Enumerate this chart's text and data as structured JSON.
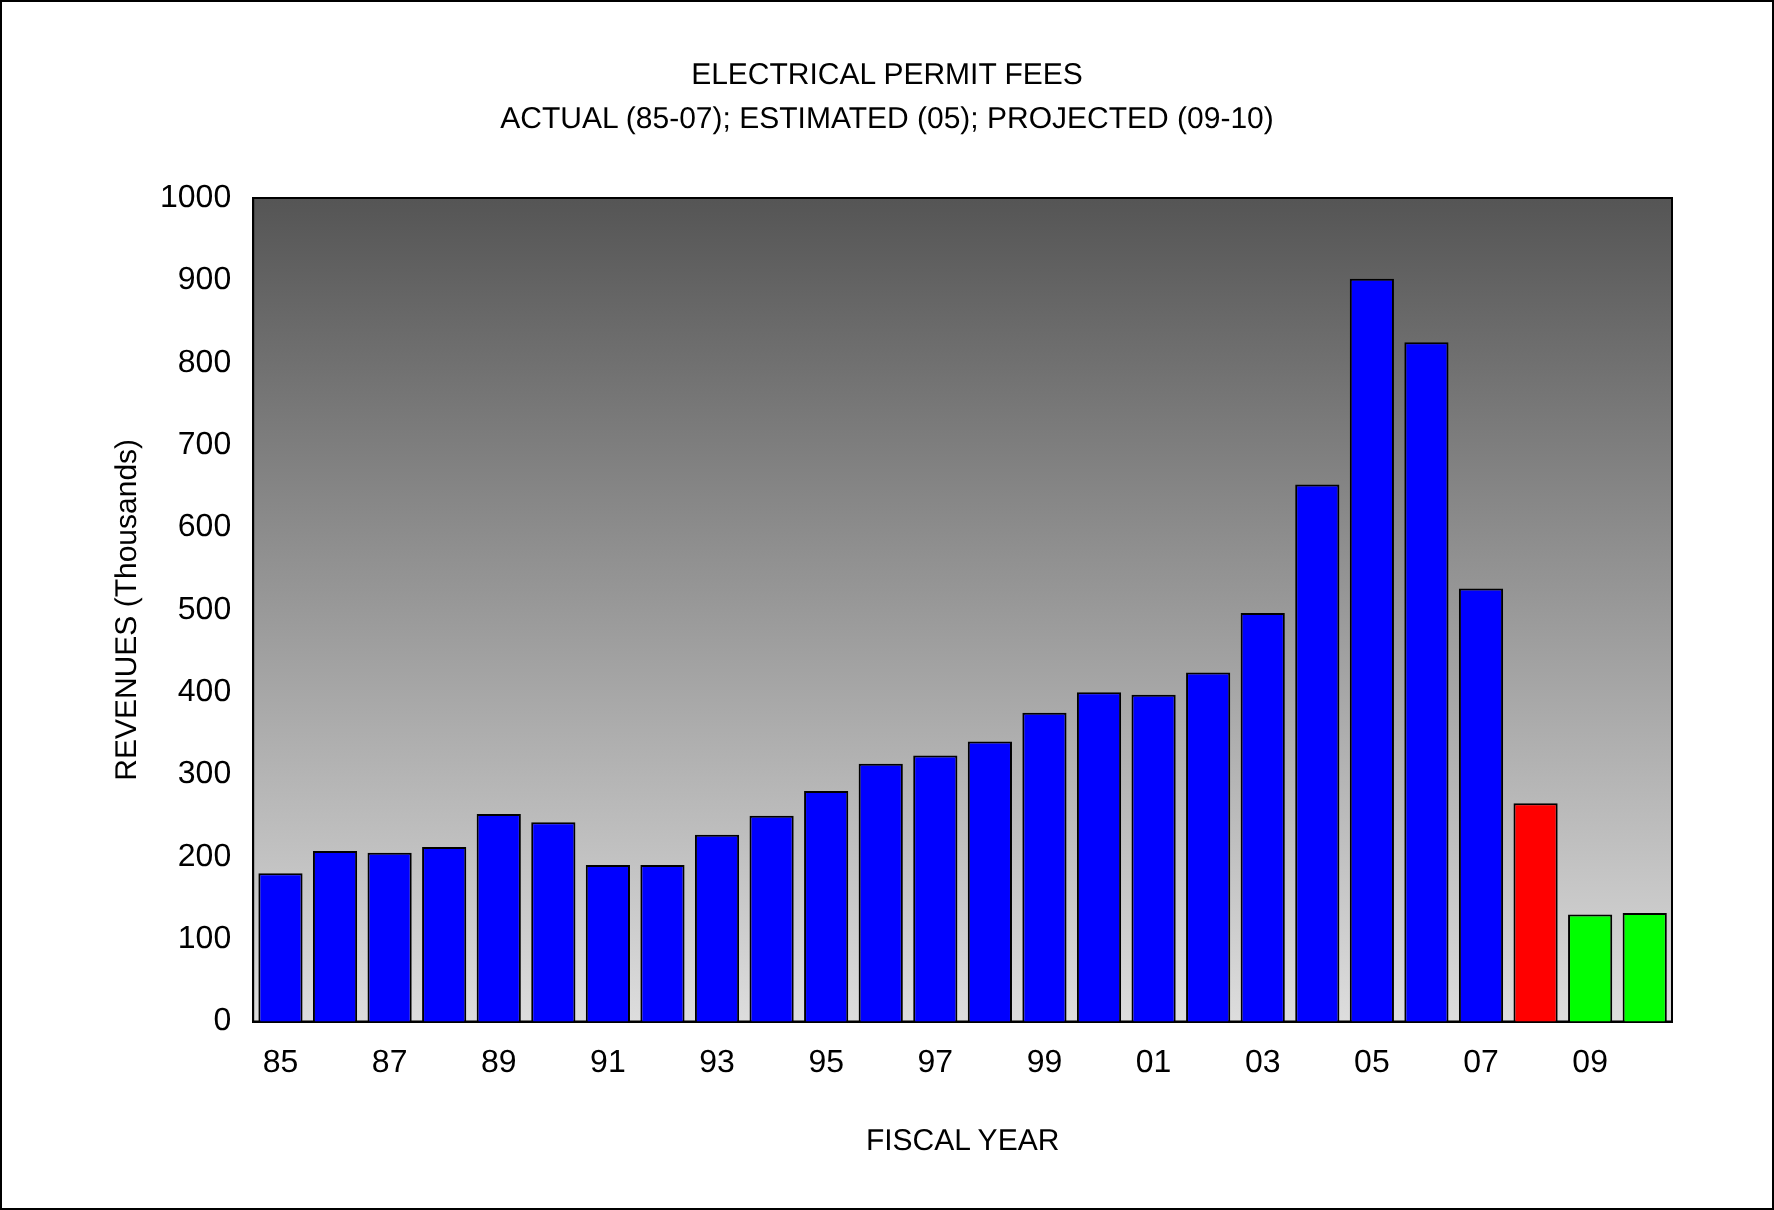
{
  "chart_data": {
    "type": "bar",
    "title": "ELECTRICAL PERMIT FEES",
    "subtitle": "ACTUAL (85-07); ESTIMATED (05); PROJECTED (09-10)",
    "xlabel": "FISCAL YEAR",
    "ylabel": "REVENUES (Thousands)",
    "categories": [
      "85",
      null,
      "87",
      null,
      "89",
      null,
      "91",
      null,
      "93",
      null,
      "95",
      null,
      "97",
      null,
      "99",
      null,
      "01",
      null,
      "03",
      null,
      "05",
      null,
      "07",
      null,
      "09",
      null
    ],
    "values": [
      180,
      207,
      205,
      212,
      252,
      242,
      190,
      190,
      227,
      250,
      280,
      313,
      323,
      340,
      375,
      400,
      397,
      424,
      496,
      652,
      902,
      825,
      526,
      265,
      130,
      132
    ],
    "colors": [
      "#0000ff",
      "#0000ff",
      "#0000ff",
      "#0000ff",
      "#0000ff",
      "#0000ff",
      "#0000ff",
      "#0000ff",
      "#0000ff",
      "#0000ff",
      "#0000ff",
      "#0000ff",
      "#0000ff",
      "#0000ff",
      "#0000ff",
      "#0000ff",
      "#0000ff",
      "#0000ff",
      "#0000ff",
      "#0000ff",
      "#0000ff",
      "#0000ff",
      "#0000ff",
      "#ff0000",
      "#00ff00",
      "#00ff00"
    ],
    "ylim": [
      0,
      1000
    ],
    "yticks": [
      0,
      100,
      200,
      300,
      400,
      500,
      600,
      700,
      800,
      900,
      1000
    ],
    "grid": false,
    "legend": false
  }
}
